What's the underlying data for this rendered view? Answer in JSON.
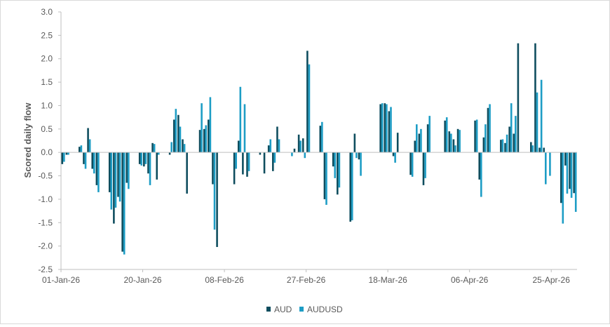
{
  "chart_data": {
    "type": "bar",
    "title": "",
    "xlabel": "",
    "ylabel": "Scored daily flow",
    "ylim": [
      -2.5,
      3.0
    ],
    "yticks": [
      3.0,
      2.5,
      2.0,
      1.5,
      1.0,
      0.5,
      0.0,
      -0.5,
      -1.0,
      -1.5,
      -2.0,
      -2.5
    ],
    "ytick_labels": [
      "3.0",
      "2.5",
      "2.0",
      "1.5",
      "1.0",
      "0.5",
      "0.0",
      "-0.5",
      "-1.0",
      "-1.5",
      "-2.0",
      "-2.5"
    ],
    "x_range": [
      "2026-01-01",
      "2026-05-01"
    ],
    "xtick_labels": [
      {
        "date": "2026-01-01",
        "label": "01-Jan-26"
      },
      {
        "date": "2026-01-20",
        "label": "20-Jan-26"
      },
      {
        "date": "2026-02-08",
        "label": "08-Feb-26"
      },
      {
        "date": "2026-02-27",
        "label": "27-Feb-26"
      },
      {
        "date": "2026-03-18",
        "label": "18-Mar-26"
      },
      {
        "date": "2026-04-06",
        "label": "06-Apr-26"
      },
      {
        "date": "2026-04-25",
        "label": "25-Apr-26"
      }
    ],
    "grid": false,
    "legend_position": "bottom-center",
    "dates": [
      "2026-01-01",
      "2026-01-02",
      "2026-01-05",
      "2026-01-06",
      "2026-01-07",
      "2026-01-08",
      "2026-01-09",
      "2026-01-12",
      "2026-01-13",
      "2026-01-14",
      "2026-01-15",
      "2026-01-16",
      "2026-01-19",
      "2026-01-20",
      "2026-01-21",
      "2026-01-22",
      "2026-01-23",
      "2026-01-26",
      "2026-01-27",
      "2026-01-28",
      "2026-01-29",
      "2026-01-30",
      "2026-02-02",
      "2026-02-03",
      "2026-02-04",
      "2026-02-05",
      "2026-02-06",
      "2026-02-09",
      "2026-02-10",
      "2026-02-11",
      "2026-02-12",
      "2026-02-13",
      "2026-02-16",
      "2026-02-17",
      "2026-02-18",
      "2026-02-19",
      "2026-02-20",
      "2026-02-23",
      "2026-02-24",
      "2026-02-25",
      "2026-02-26",
      "2026-02-27",
      "2026-03-02",
      "2026-03-03",
      "2026-03-04",
      "2026-03-05",
      "2026-03-06",
      "2026-03-09",
      "2026-03-10",
      "2026-03-11",
      "2026-03-12",
      "2026-03-13",
      "2026-03-16",
      "2026-03-17",
      "2026-03-18",
      "2026-03-19",
      "2026-03-20",
      "2026-03-23",
      "2026-03-24",
      "2026-03-25",
      "2026-03-26",
      "2026-03-27",
      "2026-03-30",
      "2026-03-31",
      "2026-04-01",
      "2026-04-02",
      "2026-04-03",
      "2026-04-06",
      "2026-04-07",
      "2026-04-08",
      "2026-04-09",
      "2026-04-10",
      "2026-04-13",
      "2026-04-14",
      "2026-04-15",
      "2026-04-16",
      "2026-04-17",
      "2026-04-20",
      "2026-04-21",
      "2026-04-22",
      "2026-04-23",
      "2026-04-24",
      "2026-04-27",
      "2026-04-28",
      "2026-04-29",
      "2026-04-30"
    ],
    "series": [
      {
        "name": "AUD",
        "color": "#0e4d5e",
        "values": [
          -0.25,
          -0.05,
          0.12,
          -0.25,
          0.52,
          -0.35,
          -0.7,
          -0.85,
          -1.52,
          -0.95,
          -2.12,
          -0.65,
          -0.25,
          -0.3,
          -0.45,
          0.2,
          -0.58,
          -0.05,
          0.7,
          0.8,
          0.28,
          -0.88,
          0.48,
          0.5,
          0.7,
          -0.68,
          -2.02,
          0.0,
          -0.68,
          0.25,
          -0.47,
          -0.52,
          -0.05,
          -0.45,
          0.15,
          -0.4,
          0.55,
          0.0,
          0.08,
          0.38,
          0.3,
          2.17,
          0.57,
          -1.0,
          0.0,
          -0.3,
          -0.9,
          -1.48,
          0.4,
          -0.15,
          0.0,
          0.0,
          1.03,
          1.05,
          0.88,
          -0.08,
          0.42,
          -0.48,
          0.25,
          0.4,
          -0.7,
          0.6,
          0.0,
          0.68,
          0.45,
          0.28,
          0.5,
          0.0,
          0.68,
          -0.58,
          0.32,
          0.95,
          0.27,
          0.2,
          0.55,
          0.4,
          2.33,
          0.22,
          2.33,
          0.1,
          0.1,
          0.0,
          -1.08,
          -0.28,
          -0.78,
          -0.87
        ]
      },
      {
        "name": "AUDUSD",
        "color": "#1d9dc5",
        "values": [
          -0.2,
          -0.05,
          0.15,
          -0.35,
          0.28,
          -0.45,
          -0.85,
          -1.22,
          -1.18,
          -1.05,
          -2.18,
          -0.78,
          -0.28,
          -0.25,
          -0.7,
          0.18,
          -0.05,
          0.22,
          0.93,
          0.55,
          0.18,
          0.0,
          1.05,
          0.58,
          1.18,
          -1.65,
          0.0,
          0.0,
          -0.35,
          1.4,
          1.03,
          -0.4,
          0.0,
          0.0,
          0.28,
          -0.22,
          0.28,
          -0.08,
          0.0,
          0.25,
          -0.12,
          1.88,
          0.65,
          -1.12,
          0.0,
          -0.55,
          -0.75,
          -1.45,
          -0.12,
          -0.5,
          0.0,
          0.0,
          1.05,
          1.03,
          0.97,
          -0.22,
          0.0,
          -0.52,
          0.6,
          0.5,
          -0.55,
          0.78,
          0.0,
          0.75,
          0.4,
          0.15,
          0.48,
          0.0,
          0.7,
          -0.95,
          0.6,
          1.03,
          0.28,
          0.38,
          1.05,
          0.78,
          0.0,
          0.15,
          1.28,
          1.55,
          -0.68,
          -0.5,
          -1.52,
          -0.88,
          -0.97,
          -1.27
        ]
      }
    ]
  }
}
